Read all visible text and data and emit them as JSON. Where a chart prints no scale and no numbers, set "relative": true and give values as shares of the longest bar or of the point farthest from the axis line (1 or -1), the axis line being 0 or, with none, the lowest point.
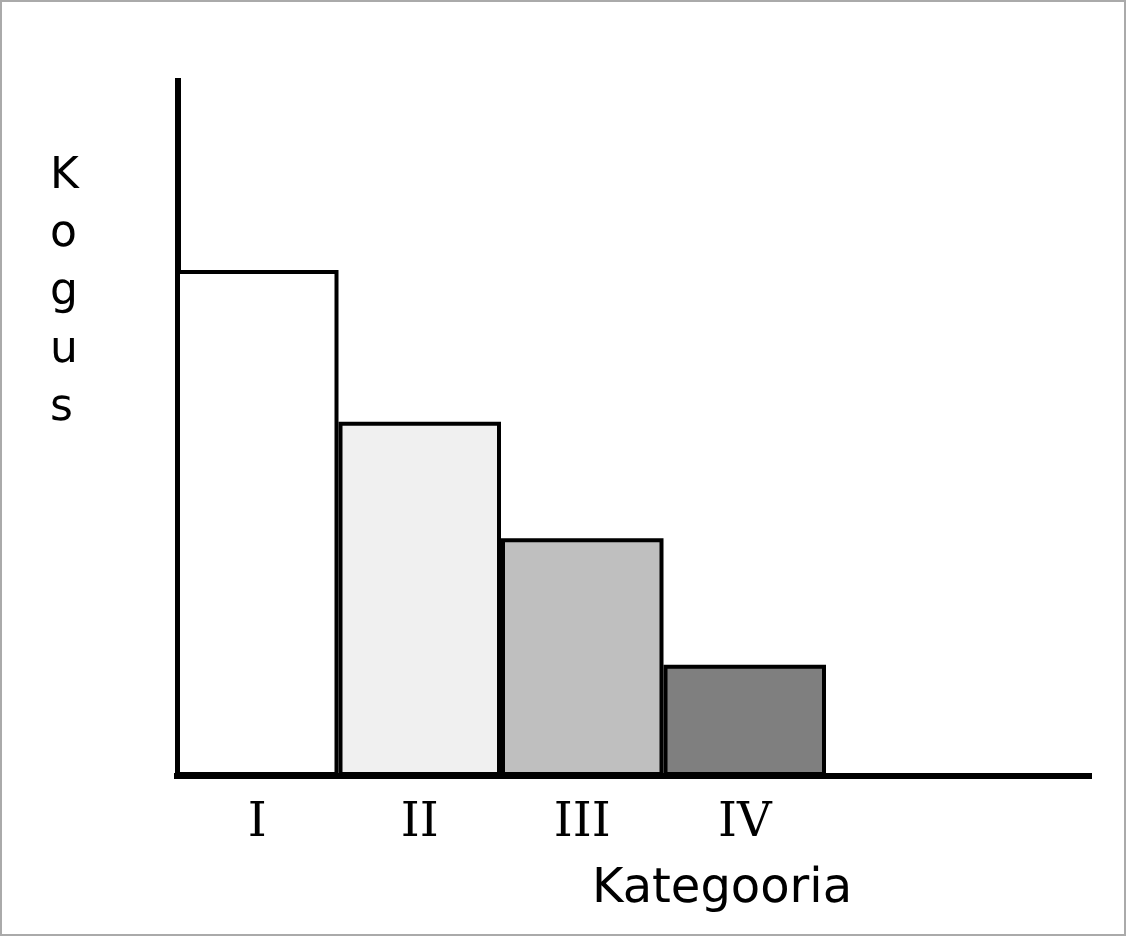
{
  "chart_data": {
    "type": "bar",
    "xlabel": "Kategooria",
    "ylabel": "Kogus",
    "categories": [
      "I",
      "II",
      "III",
      "IV"
    ],
    "values": [
      1,
      0.7,
      0.47,
      0.22
    ],
    "colors": [
      "#ffffff",
      "#f0f0f0",
      "#bfbfbf",
      "#7f7f7f"
    ],
    "relative": true,
    "grid": false
  }
}
